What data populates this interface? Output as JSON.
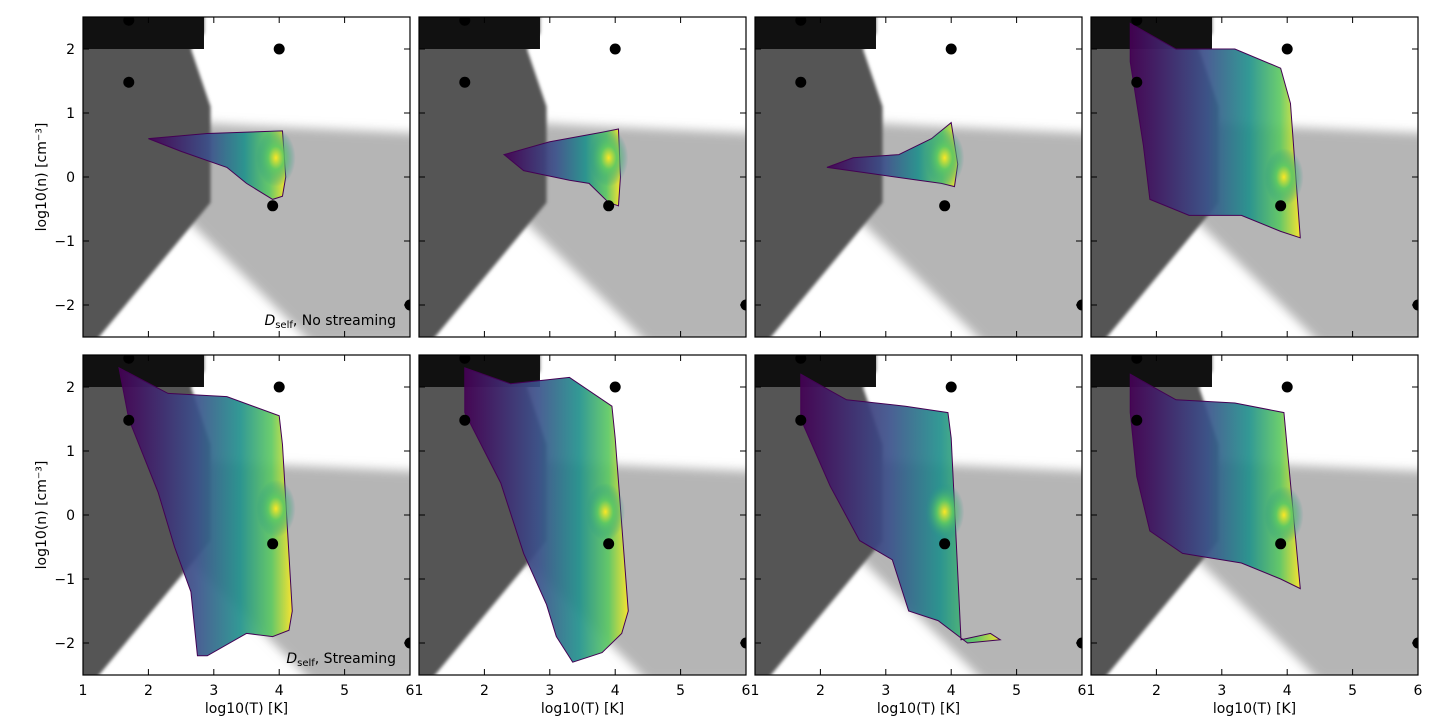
{
  "chart_data": {
    "type": "scatter",
    "layout": "2x4 grid of 2D histograms (density) over a grey-shaded phase background",
    "xlabel_text": "log10(T) [K]",
    "ylabel_text": "log10(n) [cm⁻³]",
    "xlim": [
      1,
      6
    ],
    "ylim": [
      -2.5,
      2.5
    ],
    "xticks": [
      "1",
      "2",
      "3",
      "4",
      "5",
      "6"
    ],
    "yticks": [
      "−2",
      "−1",
      "0",
      "1",
      "2"
    ],
    "colormap": [
      "#440154",
      "#3b528b",
      "#21918c",
      "#5ec962",
      "#fde725"
    ],
    "background_phase_greys": [
      "#111111",
      "#555555",
      "#b5b5b5",
      "#ffffff"
    ],
    "reference_points": {
      "x": [
        1.7,
        1.7,
        4.0,
        3.9,
        6.0
      ],
      "y": [
        2.45,
        1.48,
        2.0,
        -0.45,
        -2.0
      ]
    },
    "panels": [
      {
        "row": 0,
        "col": 0,
        "annotation_main": "D",
        "annotation_sub": "self",
        "annotation_rest": ", No streaming",
        "distribution": {
          "outline": [
            [
              2.9,
              0.68
            ],
            [
              4.05,
              0.72
            ],
            [
              4.1,
              0.0
            ],
            [
              4.05,
              -0.3
            ],
            [
              3.9,
              -0.35
            ],
            [
              3.5,
              -0.1
            ],
            [
              3.2,
              0.15
            ],
            [
              2.5,
              0.4
            ],
            [
              2.0,
              0.6
            ],
            [
              2.9,
              0.68
            ]
          ],
          "peak": [
            3.95,
            0.3
          ]
        }
      },
      {
        "row": 0,
        "col": 1,
        "distribution": {
          "outline": [
            [
              3.0,
              0.55
            ],
            [
              3.8,
              0.7
            ],
            [
              4.05,
              0.75
            ],
            [
              4.08,
              0.0
            ],
            [
              4.05,
              -0.45
            ],
            [
              3.9,
              -0.4
            ],
            [
              3.6,
              -0.1
            ],
            [
              3.3,
              -0.05
            ],
            [
              2.6,
              0.1
            ],
            [
              2.3,
              0.35
            ],
            [
              3.0,
              0.55
            ]
          ],
          "peak": [
            3.9,
            0.3
          ]
        }
      },
      {
        "row": 0,
        "col": 2,
        "distribution": {
          "outline": [
            [
              3.2,
              0.35
            ],
            [
              3.7,
              0.6
            ],
            [
              4.0,
              0.85
            ],
            [
              4.1,
              0.2
            ],
            [
              4.05,
              -0.15
            ],
            [
              3.85,
              -0.1
            ],
            [
              3.5,
              -0.05
            ],
            [
              2.8,
              0.05
            ],
            [
              2.1,
              0.15
            ],
            [
              2.5,
              0.3
            ],
            [
              3.2,
              0.35
            ]
          ],
          "peak": [
            3.9,
            0.3
          ]
        }
      },
      {
        "row": 0,
        "col": 3,
        "distribution": {
          "outline": [
            [
              1.6,
              2.4
            ],
            [
              2.3,
              2.0
            ],
            [
              3.2,
              2.0
            ],
            [
              3.9,
              1.7
            ],
            [
              4.05,
              1.15
            ],
            [
              4.2,
              -0.95
            ],
            [
              3.9,
              -0.85
            ],
            [
              3.3,
              -0.6
            ],
            [
              2.5,
              -0.6
            ],
            [
              1.9,
              -0.35
            ],
            [
              1.8,
              0.5
            ],
            [
              1.6,
              1.8
            ],
            [
              1.6,
              2.4
            ]
          ],
          "peak": [
            3.95,
            0.0
          ]
        }
      },
      {
        "row": 1,
        "col": 0,
        "annotation_main": "D",
        "annotation_sub": "self",
        "annotation_rest": ", Streaming",
        "distribution": {
          "outline": [
            [
              1.55,
              2.3
            ],
            [
              2.3,
              1.9
            ],
            [
              3.2,
              1.85
            ],
            [
              4.0,
              1.55
            ],
            [
              4.05,
              1.1
            ],
            [
              4.2,
              -1.5
            ],
            [
              4.15,
              -1.8
            ],
            [
              3.9,
              -1.9
            ],
            [
              3.5,
              -1.85
            ],
            [
              2.9,
              -2.2
            ],
            [
              2.75,
              -2.2
            ],
            [
              2.65,
              -1.2
            ],
            [
              2.4,
              -0.5
            ],
            [
              2.15,
              0.35
            ],
            [
              1.7,
              1.5
            ],
            [
              1.55,
              2.3
            ]
          ],
          "peak": [
            3.95,
            0.1
          ]
        }
      },
      {
        "row": 1,
        "col": 1,
        "distribution": {
          "outline": [
            [
              1.7,
              2.3
            ],
            [
              2.4,
              2.05
            ],
            [
              3.3,
              2.15
            ],
            [
              3.95,
              1.7
            ],
            [
              4.0,
              1.2
            ],
            [
              4.2,
              -1.5
            ],
            [
              4.1,
              -1.85
            ],
            [
              3.8,
              -2.15
            ],
            [
              3.35,
              -2.3
            ],
            [
              3.1,
              -1.9
            ],
            [
              2.95,
              -1.4
            ],
            [
              2.6,
              -0.6
            ],
            [
              2.25,
              0.5
            ],
            [
              1.7,
              1.6
            ],
            [
              1.7,
              2.3
            ]
          ],
          "peak": [
            3.85,
            0.05
          ]
        }
      },
      {
        "row": 1,
        "col": 2,
        "distribution": {
          "outline": [
            [
              1.7,
              2.2
            ],
            [
              2.4,
              1.8
            ],
            [
              3.3,
              1.7
            ],
            [
              3.95,
              1.6
            ],
            [
              4.0,
              1.2
            ],
            [
              4.15,
              -1.95
            ],
            [
              4.6,
              -1.85
            ],
            [
              4.75,
              -1.95
            ],
            [
              4.25,
              -2.0
            ],
            [
              3.8,
              -1.65
            ],
            [
              3.35,
              -1.5
            ],
            [
              3.1,
              -0.7
            ],
            [
              2.6,
              -0.4
            ],
            [
              2.15,
              0.45
            ],
            [
              1.7,
              1.5
            ],
            [
              1.7,
              2.2
            ]
          ],
          "peak": [
            3.9,
            0.05
          ]
        }
      },
      {
        "row": 1,
        "col": 3,
        "distribution": {
          "outline": [
            [
              1.6,
              2.2
            ],
            [
              2.3,
              1.8
            ],
            [
              3.2,
              1.75
            ],
            [
              3.95,
              1.6
            ],
            [
              4.0,
              1.05
            ],
            [
              4.2,
              -1.15
            ],
            [
              3.9,
              -1.0
            ],
            [
              3.3,
              -0.75
            ],
            [
              2.4,
              -0.6
            ],
            [
              1.9,
              -0.25
            ],
            [
              1.7,
              0.6
            ],
            [
              1.6,
              1.6
            ],
            [
              1.6,
              2.2
            ]
          ],
          "peak": [
            3.95,
            0.0
          ]
        }
      }
    ]
  }
}
